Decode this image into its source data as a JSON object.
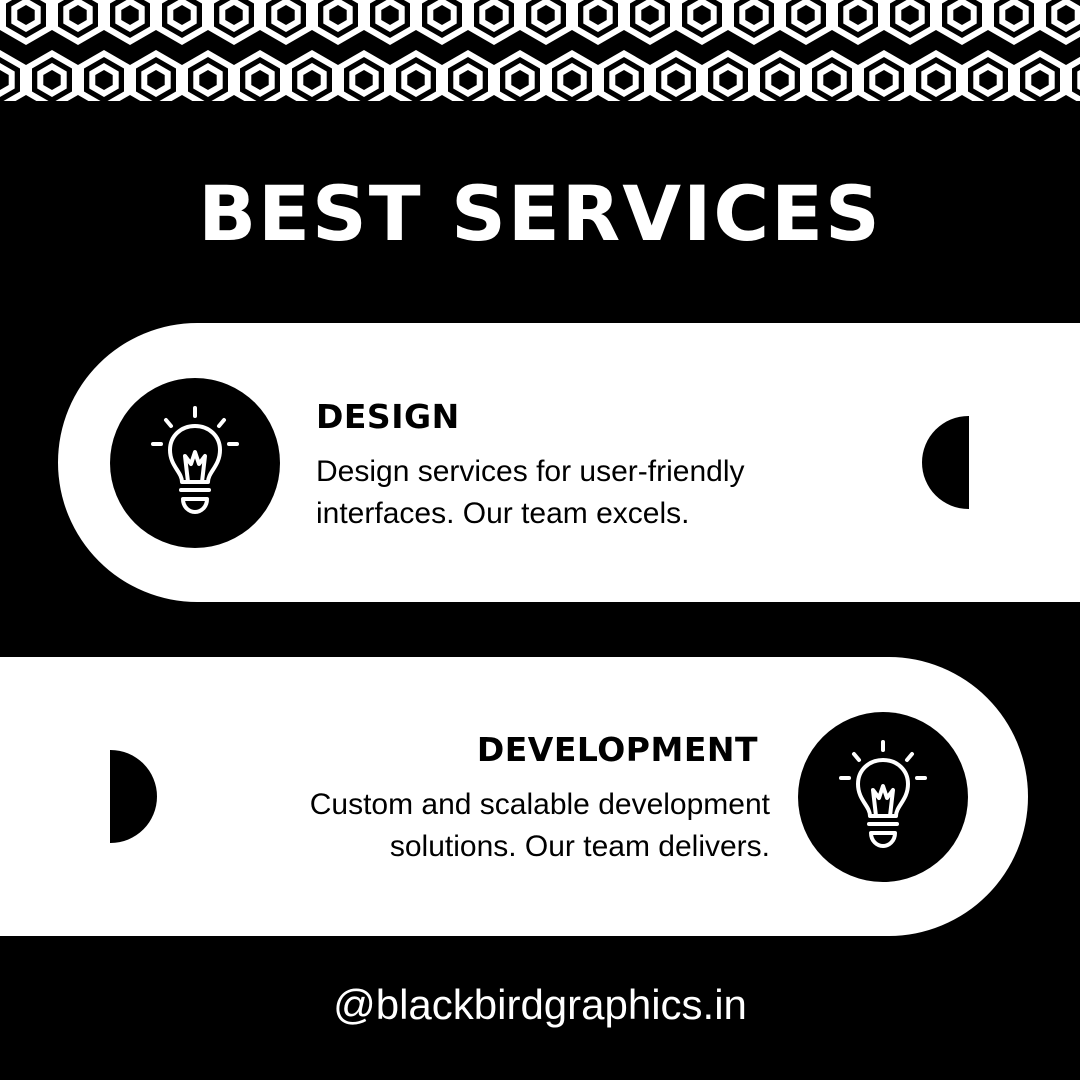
{
  "title": "BEST SERVICES",
  "services": [
    {
      "title": "DESIGN",
      "lines": [
        "Design services for user-friendly",
        "interfaces. Our team excels."
      ],
      "icon": "lightbulb-icon"
    },
    {
      "title": "DEVELOPMENT",
      "lines": [
        "Custom and scalable development",
        "solutions. Our team delivers."
      ],
      "icon": "lightbulb-icon"
    }
  ],
  "handle": "@blackbirdgraphics.in",
  "colors": {
    "background": "#000000",
    "foreground": "#ffffff"
  }
}
